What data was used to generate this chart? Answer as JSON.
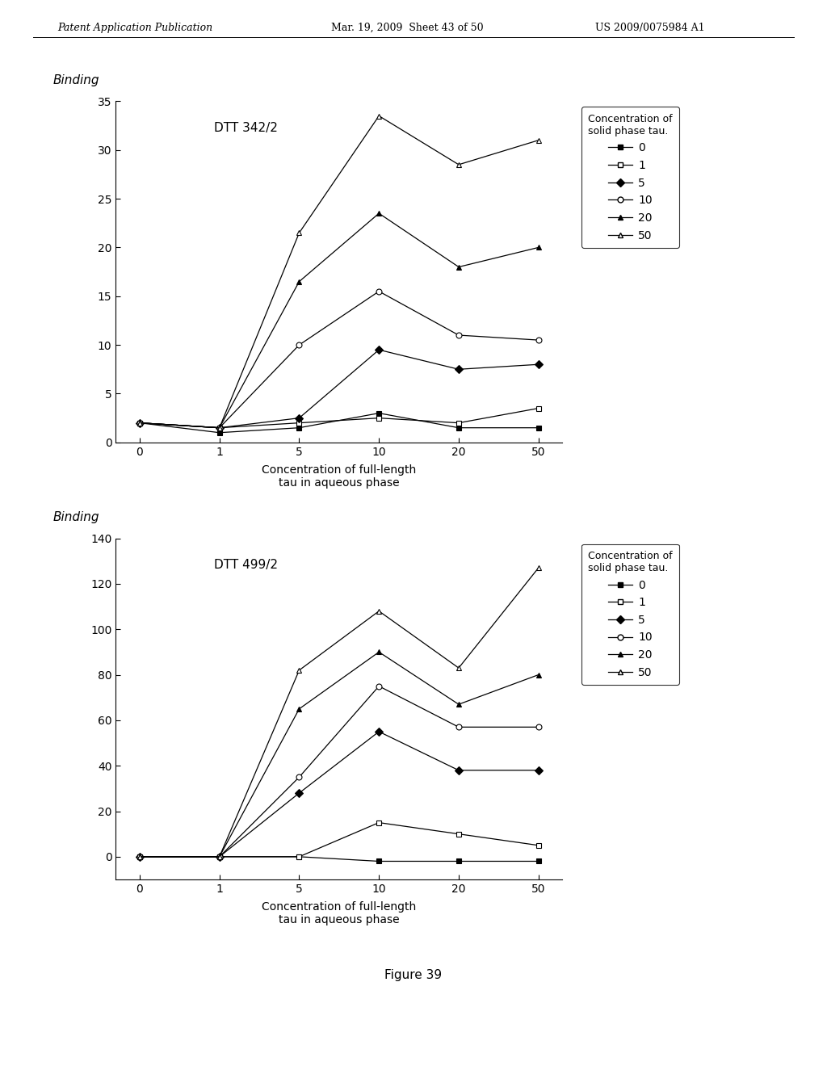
{
  "chart1": {
    "title": "DTT 342/2",
    "x_labels": [
      "0",
      "1",
      "5",
      "10",
      "20",
      "50"
    ],
    "ylabel": "Binding",
    "xlabel": "Concentration of full-length\ntau in aqueous phase",
    "legend_title": "Concentration of\nsolid phase tau.",
    "series": [
      {
        "label": "0",
        "marker": "s",
        "filled": true,
        "values": [
          2.0,
          1.0,
          1.5,
          3.0,
          1.5,
          1.5
        ]
      },
      {
        "label": "1",
        "marker": "s",
        "filled": false,
        "values": [
          2.0,
          1.5,
          2.0,
          2.5,
          2.0,
          3.5
        ]
      },
      {
        "label": "5",
        "marker": "D",
        "filled": true,
        "values": [
          2.0,
          1.5,
          2.5,
          9.5,
          7.5,
          8.0
        ]
      },
      {
        "label": "10",
        "marker": "o",
        "filled": false,
        "values": [
          2.0,
          1.5,
          10.0,
          15.5,
          11.0,
          10.5
        ]
      },
      {
        "label": "20",
        "marker": "^",
        "filled": true,
        "values": [
          2.0,
          1.5,
          16.5,
          23.5,
          18.0,
          20.0
        ]
      },
      {
        "label": "50",
        "marker": "^",
        "filled": false,
        "values": [
          2.0,
          1.5,
          21.5,
          33.5,
          28.5,
          31.0
        ]
      }
    ],
    "ylim": [
      0,
      35
    ],
    "yticks": [
      0,
      5,
      10,
      15,
      20,
      25,
      30,
      35
    ]
  },
  "chart2": {
    "title": "DTT 499/2",
    "x_labels": [
      "0",
      "1",
      "5",
      "10",
      "20",
      "50"
    ],
    "ylabel": "Binding",
    "xlabel": "Concentration of full-length\ntau in aqueous phase",
    "legend_title": "Concentration of\nsolid phase tau.",
    "series": [
      {
        "label": "0",
        "marker": "s",
        "filled": true,
        "values": [
          0.0,
          0.0,
          0.0,
          -2.0,
          -2.0,
          -2.0
        ]
      },
      {
        "label": "1",
        "marker": "s",
        "filled": false,
        "values": [
          0.0,
          0.0,
          0.0,
          15.0,
          10.0,
          5.0
        ]
      },
      {
        "label": "5",
        "marker": "D",
        "filled": true,
        "values": [
          0.0,
          0.0,
          28.0,
          55.0,
          38.0,
          38.0
        ]
      },
      {
        "label": "10",
        "marker": "o",
        "filled": false,
        "values": [
          0.0,
          0.0,
          35.0,
          75.0,
          57.0,
          57.0
        ]
      },
      {
        "label": "20",
        "marker": "^",
        "filled": true,
        "values": [
          0.0,
          0.0,
          65.0,
          90.0,
          67.0,
          80.0
        ]
      },
      {
        "label": "50",
        "marker": "^",
        "filled": false,
        "values": [
          0.0,
          0.0,
          82.0,
          108.0,
          83.0,
          127.0
        ]
      }
    ],
    "ylim": [
      -10,
      140
    ],
    "yticks": [
      0,
      20,
      40,
      60,
      80,
      100,
      120,
      140
    ]
  },
  "figure_label": "Figure 39",
  "header_left": "Patent Application Publication",
  "header_mid": "Mar. 19, 2009  Sheet 43 of 50",
  "header_right": "US 2009/0075984 A1",
  "bg_color": "#ffffff"
}
